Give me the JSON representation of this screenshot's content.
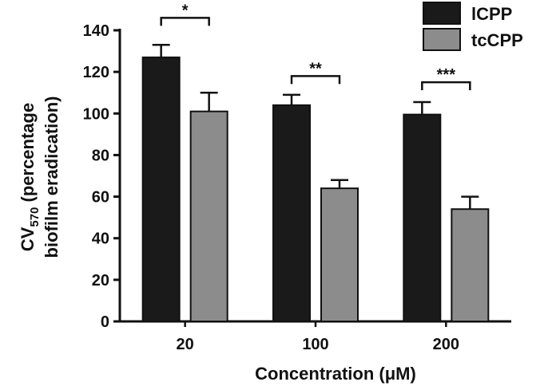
{
  "chart_data": {
    "type": "bar",
    "title": "",
    "categories": [
      "20",
      "100",
      "200"
    ],
    "series": [
      {
        "name": "lCPP",
        "color": "#1a1a1a",
        "values": [
          127,
          104,
          99.5
        ],
        "errors": [
          6,
          5,
          6
        ]
      },
      {
        "name": "tcCPP",
        "color": "#8c8c8c",
        "values": [
          101,
          64,
          54
        ],
        "errors": [
          9,
          4,
          6
        ]
      }
    ],
    "xlabel": "Concentration (μM)",
    "ylabel": {
      "line1_main": "CV",
      "line1_sub": "570",
      "line1_rest": " (percentage",
      "line2": "biofilm eradication)"
    },
    "ylim": [
      0,
      140
    ],
    "yticks": [
      0,
      20,
      40,
      60,
      80,
      100,
      120,
      140
    ],
    "grid": false,
    "legend_position": "top-right",
    "significance": [
      {
        "category": "20",
        "label": "*",
        "bracket_level": 146
      },
      {
        "category": "100",
        "label": "**",
        "bracket_level": 118
      },
      {
        "category": "200",
        "label": "***",
        "bracket_level": 115
      }
    ]
  }
}
